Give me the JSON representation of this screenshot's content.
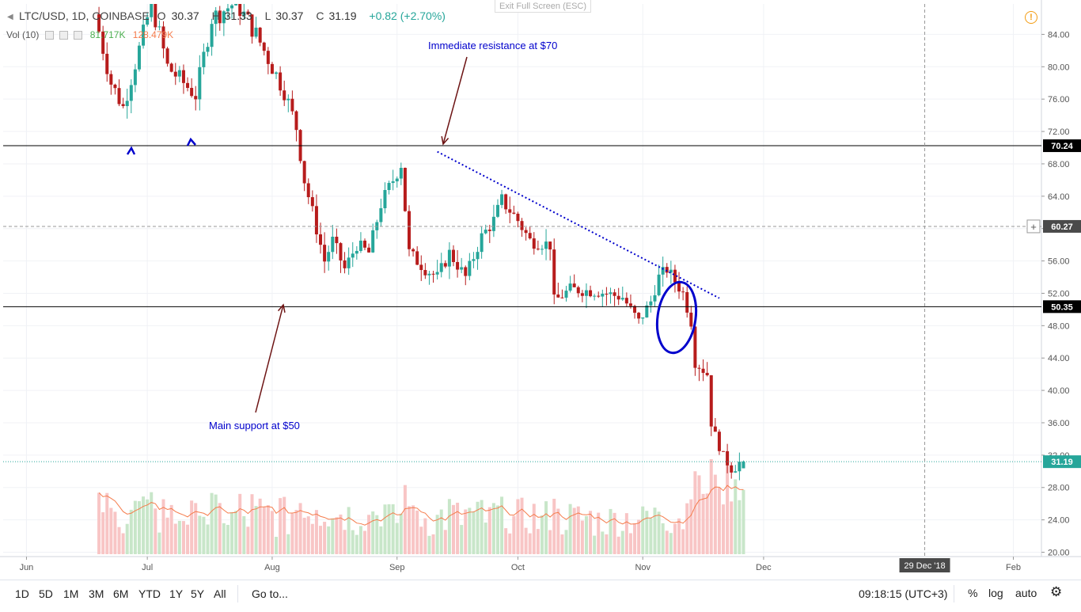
{
  "toolbar_top": {
    "exit_fullscreen": "Exit Full Screen (ESC)"
  },
  "legend": {
    "symbol": "LTC/USD, 1D, COINBASE",
    "open_label": "O",
    "open": "30.37",
    "high_label": "H",
    "high": "31.33",
    "low_label": "L",
    "low": "30.37",
    "close_label": "C",
    "close": "31.19",
    "change": "+0.82 (+2.70%)",
    "vol_label": "Vol (10)",
    "vol_value": "81.717K",
    "vol_ma": "128.479K"
  },
  "annotations": {
    "resistance": "Immediate resistance at $70",
    "support": "Main support at $50"
  },
  "price_axis": {
    "ticks": [
      "84.00",
      "80.00",
      "76.00",
      "72.00",
      "68.00",
      "64.00",
      "60.00",
      "56.00",
      "52.00",
      "48.00",
      "44.00",
      "40.00",
      "36.00",
      "32.00",
      "28.00",
      "24.00",
      "20.00"
    ],
    "labels": {
      "resistance": "70.24",
      "crosshair": "60.27",
      "support": "50.35",
      "last": "31.19"
    }
  },
  "time_axis": {
    "ticks": [
      "Jun",
      "Jul",
      "Aug",
      "Sep",
      "Oct",
      "Nov",
      "Dec",
      "Feb"
    ],
    "crosshair_label": "29 Dec '18"
  },
  "bottom_toolbar": {
    "ranges": [
      "1D",
      "5D",
      "1M",
      "3M",
      "6M",
      "YTD",
      "1Y",
      "5Y",
      "All"
    ],
    "goto": "Go to...",
    "time": "09:18:15 (UTC+3)",
    "percent": "%",
    "log": "log",
    "auto": "auto"
  },
  "colors": {
    "up": "#26a69a",
    "down": "#b71c1c",
    "vol_up": "#c8e6c9",
    "vol_down": "#f8c5c5",
    "annotation": "#0000cc",
    "arrow": "#6d1414",
    "ma": "#f57c4c"
  },
  "icons": {
    "settings": "gear-icon",
    "alert": "alert-icon"
  },
  "chart_data": {
    "type": "candlestick",
    "title": "LTC/USD, 1D, COINBASE",
    "ylim": [
      20,
      86
    ],
    "x_range": [
      "2018-05-27",
      "2019-02-24"
    ],
    "price_lines": {
      "resistance": 70.24,
      "crosshair": 60.27,
      "support": 50.35,
      "last": 31.19
    },
    "trendline": {
      "from": [
        "2018-09-11",
        69.5
      ],
      "to": [
        "2018-11-20",
        51.4
      ]
    },
    "anchors": [
      [
        "2018-06-19",
        86.5
      ],
      [
        "2018-06-23",
        78.0
      ],
      [
        "2018-06-26",
        75.0
      ],
      [
        "2018-07-01",
        84.0
      ],
      [
        "2018-07-03",
        88.0
      ],
      [
        "2018-07-07",
        80.0
      ],
      [
        "2018-07-11",
        78.0
      ],
      [
        "2018-07-14",
        76.5
      ],
      [
        "2018-07-18",
        86.0
      ],
      [
        "2018-07-24",
        88.0
      ],
      [
        "2018-07-29",
        84.0
      ],
      [
        "2018-08-02",
        80.0
      ],
      [
        "2018-08-05",
        77.0
      ],
      [
        "2018-08-08",
        72.5
      ],
      [
        "2018-08-10",
        66.0
      ],
      [
        "2018-08-12",
        62.0
      ],
      [
        "2018-08-15",
        56.0
      ],
      [
        "2018-08-17",
        58.5
      ],
      [
        "2018-08-20",
        55.0
      ],
      [
        "2018-08-23",
        58.0
      ],
      [
        "2018-08-26",
        57.0
      ],
      [
        "2018-08-29",
        63.0
      ],
      [
        "2018-09-01",
        66.0
      ],
      [
        "2018-09-03",
        68.0
      ],
      [
        "2018-09-05",
        57.0
      ],
      [
        "2018-09-09",
        55.0
      ],
      [
        "2018-09-12",
        54.0
      ],
      [
        "2018-09-15",
        57.0
      ],
      [
        "2018-09-19",
        54.0
      ],
      [
        "2018-09-23",
        59.0
      ],
      [
        "2018-09-26",
        61.0
      ],
      [
        "2018-09-28",
        63.5
      ],
      [
        "2018-10-02",
        61.0
      ],
      [
        "2018-10-05",
        58.5
      ],
      [
        "2018-10-10",
        58.0
      ],
      [
        "2018-10-11",
        51.0
      ],
      [
        "2018-10-15",
        52.5
      ],
      [
        "2018-10-22",
        52.2
      ],
      [
        "2018-10-28",
        51.5
      ],
      [
        "2018-11-01",
        48.5
      ],
      [
        "2018-11-04",
        51.0
      ],
      [
        "2018-11-06",
        54.0
      ],
      [
        "2018-11-08",
        55.0
      ],
      [
        "2018-11-12",
        52.0
      ],
      [
        "2018-11-14",
        48.5
      ],
      [
        "2018-11-15",
        43.5
      ],
      [
        "2018-11-18",
        42.0
      ],
      [
        "2018-11-19",
        36.0
      ],
      [
        "2018-11-21",
        33.0
      ],
      [
        "2018-11-23",
        31.0
      ],
      [
        "2018-11-24",
        30.2
      ],
      [
        "2018-11-25",
        30.37
      ],
      [
        "2018-11-26",
        31.19
      ]
    ]
  }
}
